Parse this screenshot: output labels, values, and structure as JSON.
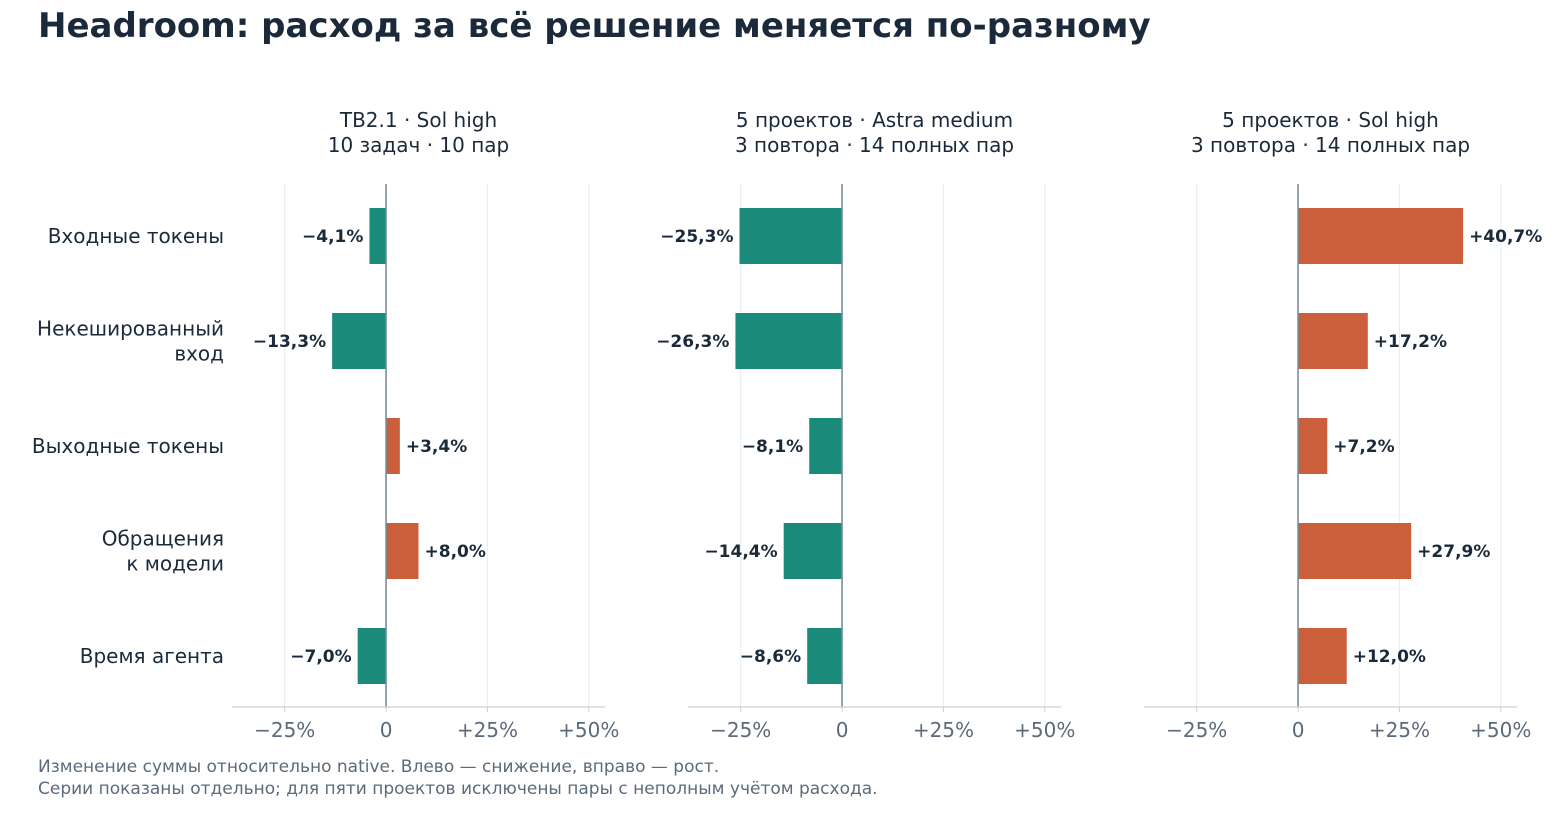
{
  "title": "Headroom: расход за всё решение меняется по-разному",
  "footnotes": [
    "Изменение суммы относительно native. Влево — снижение, вправо — рост.",
    "Серии показаны отдельно; для пяти проектов исключены пары с неполным учётом расхода."
  ],
  "colors": {
    "decrease": "#1a8a7a",
    "increase": "#cc5f3b",
    "axis": "#7a8c9c",
    "grid": "#e8ecef",
    "text": "#1b2a3a",
    "tick": "#5b6b7b"
  },
  "chart_data": [
    {
      "type": "bar",
      "orientation": "horizontal",
      "subtitle": [
        "TB2.1 · Sol high",
        "10 задач · 10 пар"
      ],
      "categories": [
        [
          "Входные токены"
        ],
        [
          "Некешированный",
          "вход"
        ],
        [
          "Выходные токены"
        ],
        [
          "Обращения",
          "к модели"
        ],
        [
          "Время агента"
        ]
      ],
      "values": [
        -4.1,
        -13.3,
        3.4,
        8.0,
        -7.0
      ],
      "labels": [
        "−4,1%",
        "−13,3%",
        "+3,4%",
        "+8,0%",
        "−7,0%"
      ],
      "xlim": [
        -38,
        54
      ],
      "xticks": [
        -25,
        0,
        25,
        50
      ],
      "xtick_labels": [
        "−25%",
        "0",
        "+25%",
        "+50%"
      ],
      "grid": true
    },
    {
      "type": "bar",
      "orientation": "horizontal",
      "subtitle": [
        "5 проектов · Astra medium",
        "3 повтора · 14 полных пар"
      ],
      "values": [
        -25.3,
        -26.3,
        -8.1,
        -14.4,
        -8.6
      ],
      "labels": [
        "−25,3%",
        "−26,3%",
        "−8,1%",
        "−14,4%",
        "−8,6%"
      ],
      "xlim": [
        -38,
        54
      ],
      "xticks": [
        -25,
        0,
        25,
        50
      ],
      "xtick_labels": [
        "−25%",
        "0",
        "+25%",
        "+50%"
      ],
      "grid": true
    },
    {
      "type": "bar",
      "orientation": "horizontal",
      "subtitle": [
        "5 проектов · Sol high",
        "3 повтора · 14 полных пар"
      ],
      "values": [
        40.7,
        17.2,
        7.2,
        27.9,
        12.0
      ],
      "labels": [
        "+40,7%",
        "+17,2%",
        "+7,2%",
        "+27,9%",
        "+12,0%"
      ],
      "xlim": [
        -38,
        54
      ],
      "xticks": [
        -25,
        0,
        25,
        50
      ],
      "xtick_labels": [
        "−25%",
        "0",
        "+25%",
        "+50%"
      ],
      "grid": true
    }
  ]
}
